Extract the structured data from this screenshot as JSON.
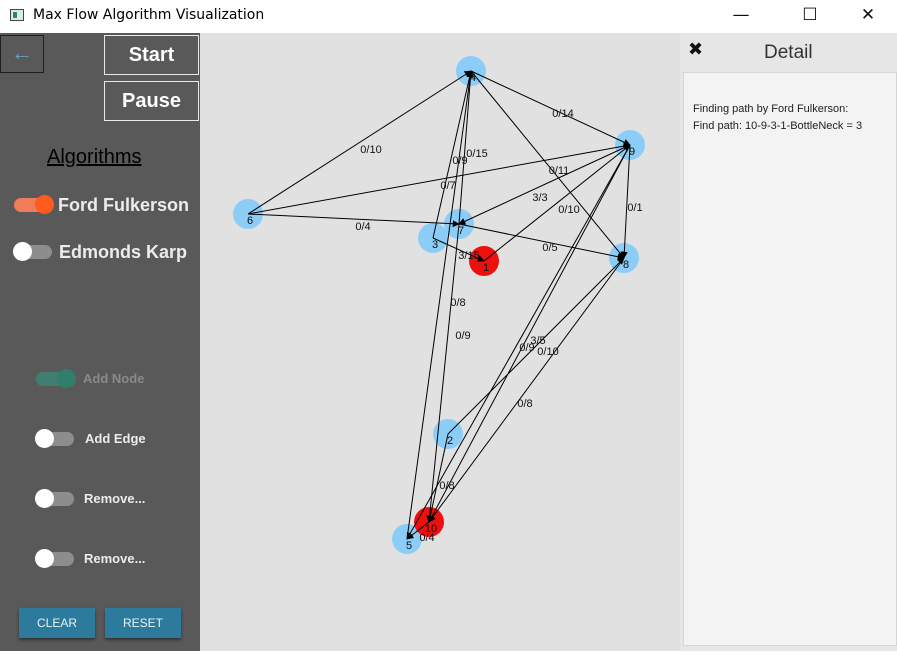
{
  "window": {
    "title": "Max Flow Algorithm Visualization",
    "minimize": "—",
    "maximize": "☐",
    "close": "✕"
  },
  "sidebar": {
    "back_glyph": "←",
    "start_label": "Start",
    "pause_label": "Pause",
    "algorithms_title": "Algorithms",
    "algorithms": [
      {
        "label": "Ford Fulkerson",
        "on": true
      },
      {
        "label": "Edmonds Karp",
        "on": false
      }
    ],
    "tools": [
      {
        "label": "Add Node",
        "on": true,
        "disabled": true
      },
      {
        "label": "Add Edge",
        "on": false,
        "disabled": false
      },
      {
        "label": "Remove...",
        "on": false,
        "disabled": false
      },
      {
        "label": "Remove...",
        "on": false,
        "disabled": false
      }
    ],
    "clear_label": "CLEAR",
    "reset_label": "RESET"
  },
  "detail": {
    "title": "Detail",
    "pin_glyph": "📌",
    "lines": [
      "Finding path by Ford Fulkerson:",
      "Find path: 10-9-3-1-BottleNeck = 3"
    ]
  },
  "graph": {
    "colors": {
      "node": "#8ccdf7",
      "active": "#ee0f0f",
      "edge": "#000000"
    },
    "nodes": [
      {
        "id": "1",
        "label": "1",
        "active": true
      },
      {
        "id": "2",
        "label": "2",
        "active": false
      },
      {
        "id": "3",
        "label": "3",
        "active": false
      },
      {
        "id": "4",
        "label": "4",
        "active": false
      },
      {
        "id": "5",
        "label": "5",
        "active": false
      },
      {
        "id": "6",
        "label": "6",
        "active": false
      },
      {
        "id": "7",
        "label": "7",
        "active": false
      },
      {
        "id": "8",
        "label": "8",
        "active": false
      },
      {
        "id": "9",
        "label": "9",
        "active": false
      },
      {
        "id": "10",
        "label": "10",
        "active": true
      }
    ],
    "edges": [
      {
        "from": "6",
        "to": "4",
        "label": "0/10"
      },
      {
        "from": "6",
        "to": "9",
        "label": "0/11"
      },
      {
        "from": "6",
        "to": "7",
        "label": "0/4"
      },
      {
        "from": "4",
        "to": "9",
        "label": "0/14"
      },
      {
        "from": "4",
        "to": "8",
        "label": "0/10"
      },
      {
        "from": "3",
        "to": "4",
        "label": "0/15"
      },
      {
        "from": "7",
        "to": "4",
        "label": "0/9"
      },
      {
        "from": "5",
        "to": "4",
        "label": "0/7"
      },
      {
        "from": "1",
        "to": "9",
        "label": "3/3"
      },
      {
        "from": "9",
        "to": "7",
        "label": "0/8"
      },
      {
        "from": "9",
        "to": "8",
        "label": "0/1"
      },
      {
        "from": "9",
        "to": "10",
        "label": "3/5"
      },
      {
        "from": "9",
        "to": "5",
        "label": "0/9"
      },
      {
        "from": "7",
        "to": "8",
        "label": "0/5"
      },
      {
        "from": "3",
        "to": "1",
        "label": "3/15"
      },
      {
        "from": "7",
        "to": "10",
        "label": "0/9"
      },
      {
        "from": "8",
        "to": "10",
        "label": "0/10"
      },
      {
        "from": "2",
        "to": "8",
        "label": "0/8"
      },
      {
        "from": "2",
        "to": "10",
        "label": "0/8"
      },
      {
        "from": "10",
        "to": "5",
        "label": "0/4"
      }
    ]
  }
}
